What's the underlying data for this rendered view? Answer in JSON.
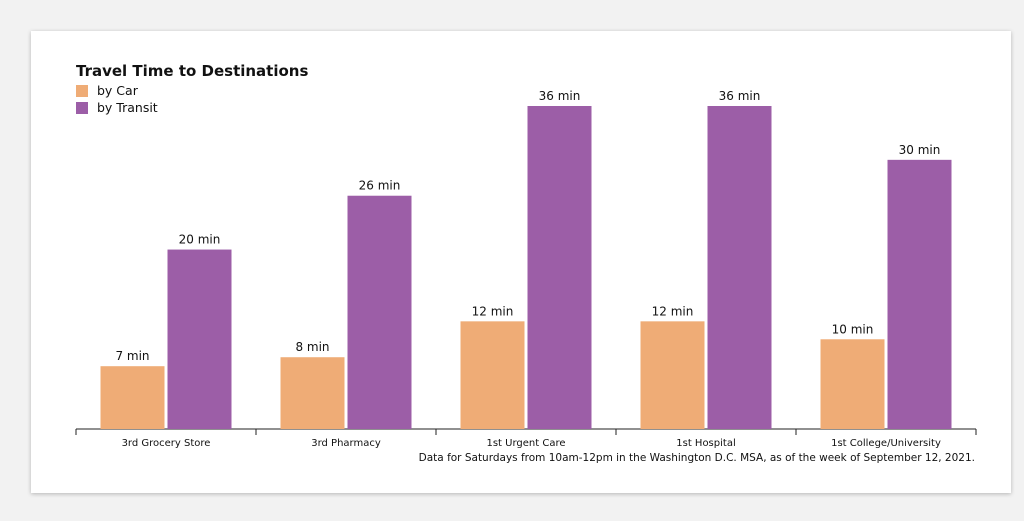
{
  "chart_data": {
    "type": "bar",
    "title": "Travel Time to Destinations",
    "categories": [
      "3rd Grocery Store",
      "3rd Pharmacy",
      "1st Urgent Care",
      "1st Hospital",
      "1st College/University"
    ],
    "series": [
      {
        "name": "by Car",
        "values": [
          7,
          8,
          12,
          12,
          10
        ],
        "color": "#efac76"
      },
      {
        "name": "by Transit",
        "values": [
          20,
          26,
          36,
          36,
          30
        ],
        "color": "#9c5ea7"
      }
    ],
    "value_suffix": " min",
    "ylim": [
      0,
      36
    ],
    "grid": false,
    "legend_position": "top-left",
    "footnote": "Data for Saturdays from 10am-12pm in the Washington D.C. MSA, as of the week of September 12, 2021."
  }
}
